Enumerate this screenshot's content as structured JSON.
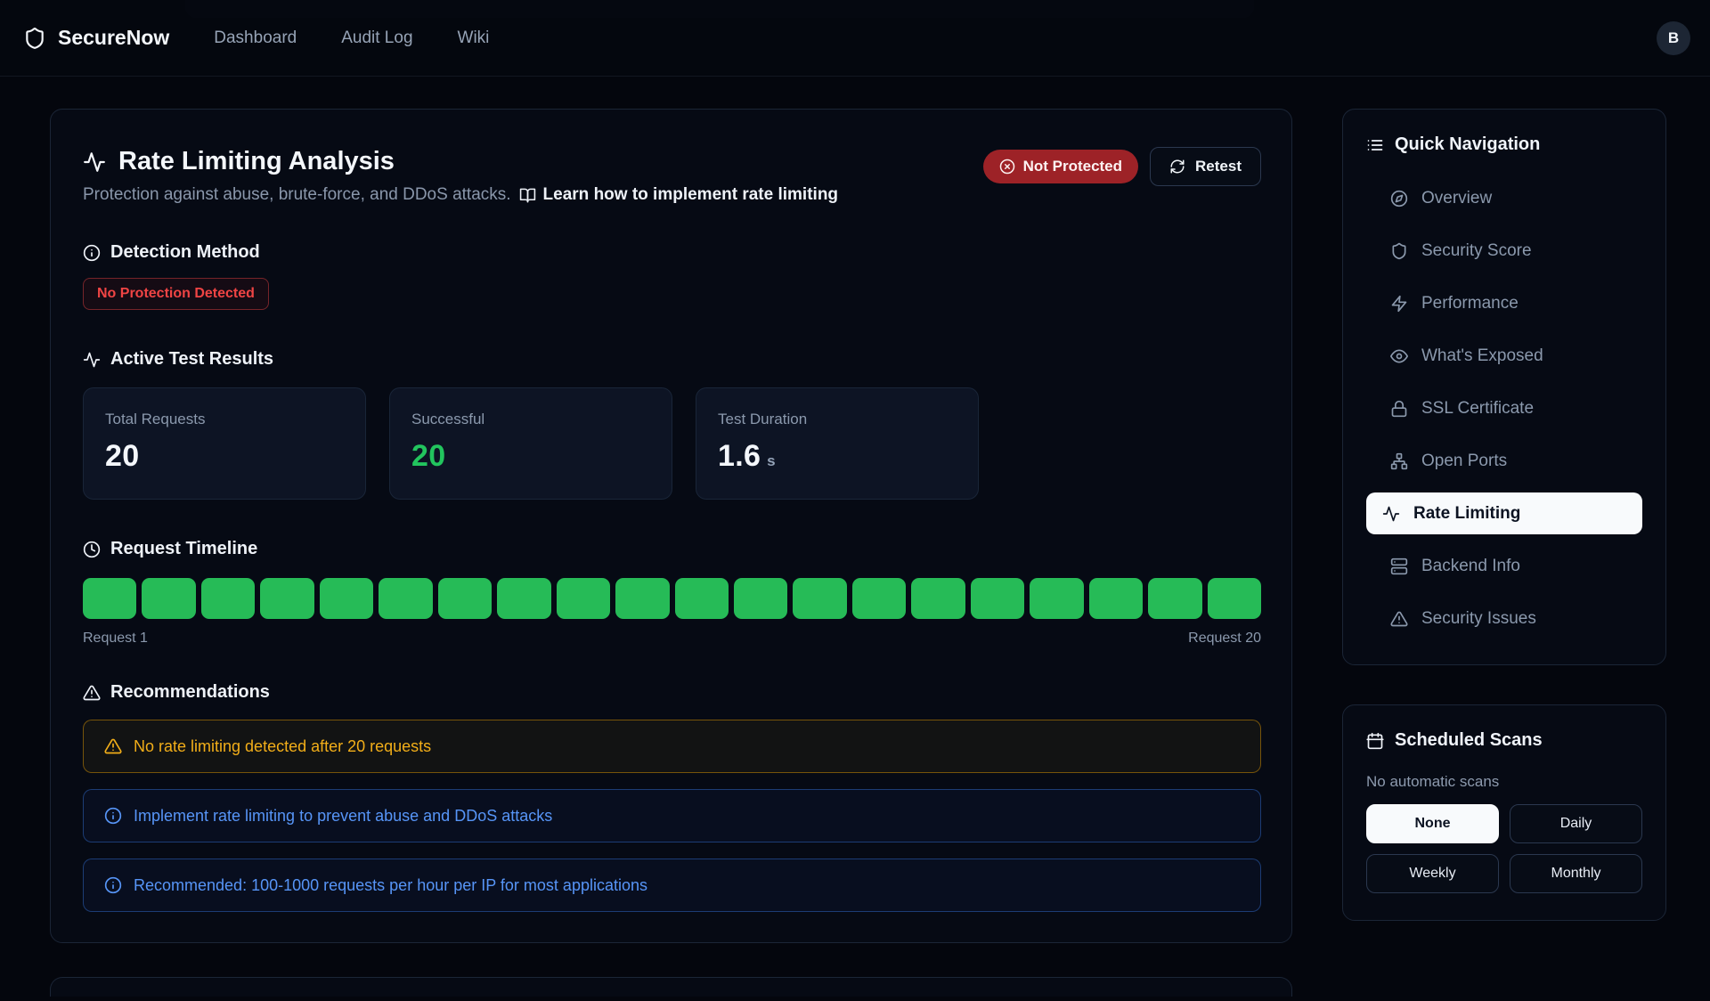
{
  "navbar": {
    "brand": "SecureNow",
    "links": [
      {
        "label": "Dashboard"
      },
      {
        "label": "Audit Log"
      },
      {
        "label": "Wiki"
      }
    ],
    "avatar_initial": "B"
  },
  "main": {
    "title": "Rate Limiting Analysis",
    "subtitle": "Protection against abuse, brute-force, and DDoS attacks.",
    "learn_link": "Learn how to implement rate limiting",
    "status_badge": "Not Protected",
    "retest_label": "Retest",
    "detection": {
      "heading": "Detection Method",
      "badge": "No Protection Detected"
    },
    "results": {
      "heading": "Active Test Results",
      "stats": [
        {
          "label": "Total Requests",
          "value": "20"
        },
        {
          "label": "Successful",
          "value": "20"
        },
        {
          "label": "Test Duration",
          "value": "1.6",
          "unit": "s"
        }
      ]
    },
    "timeline": {
      "heading": "Request Timeline",
      "blocks": 20,
      "start_label": "Request 1",
      "end_label": "Request 20",
      "block_color": "#26bb57"
    },
    "recommendations": {
      "heading": "Recommendations",
      "alerts": [
        {
          "type": "warning",
          "text": "No rate limiting detected after 20 requests"
        },
        {
          "type": "info",
          "text": "Implement rate limiting to prevent abuse and DDoS attacks"
        },
        {
          "type": "info",
          "text": "Recommended: 100-1000 requests per hour per IP for most applications"
        }
      ]
    }
  },
  "sidebar": {
    "nav": {
      "heading": "Quick Navigation",
      "items": [
        {
          "label": "Overview",
          "icon": "compass-icon",
          "active": false
        },
        {
          "label": "Security Score",
          "icon": "shield-icon",
          "active": false
        },
        {
          "label": "Performance",
          "icon": "zap-icon",
          "active": false
        },
        {
          "label": "What's Exposed",
          "icon": "eye-icon",
          "active": false
        },
        {
          "label": "SSL Certificate",
          "icon": "lock-icon",
          "active": false
        },
        {
          "label": "Open Ports",
          "icon": "network-icon",
          "active": false
        },
        {
          "label": "Rate Limiting",
          "icon": "activity-icon",
          "active": true
        },
        {
          "label": "Backend Info",
          "icon": "server-icon",
          "active": false
        },
        {
          "label": "Security Issues",
          "icon": "alert-triangle-icon",
          "active": false
        }
      ]
    },
    "scans": {
      "heading": "Scheduled Scans",
      "status": "No automatic scans",
      "options": [
        {
          "label": "None",
          "selected": true
        },
        {
          "label": "Daily",
          "selected": false
        },
        {
          "label": "Weekly",
          "selected": false
        },
        {
          "label": "Monthly",
          "selected": false
        }
      ]
    }
  },
  "colors": {
    "accent_green": "#26bb57",
    "danger_badge_bg": "#9d2227",
    "danger_text": "#ef4444",
    "warning_text": "#f2ae19",
    "info_text": "#5795f7"
  }
}
